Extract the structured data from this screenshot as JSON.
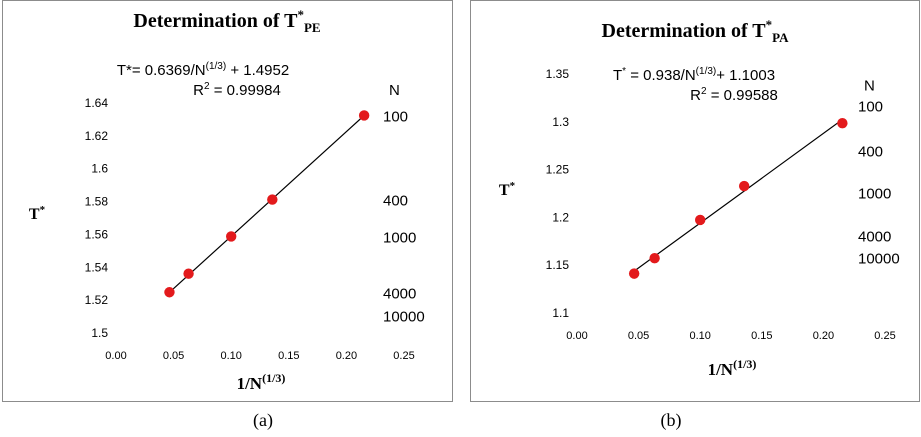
{
  "captions": [
    "(a)",
    "(b)"
  ],
  "chart_data": [
    {
      "type": "scatter",
      "title_main": "Determination of T",
      "title_sup": "*",
      "title_sub": "PE",
      "xlabel_main": "1/N",
      "xlabel_sup": "(1/3)",
      "ylabel_main": "T",
      "ylabel_sup": "*",
      "xlim": [
        0,
        0.25
      ],
      "ylim": [
        1.5,
        1.64
      ],
      "xticks": [
        "0.00",
        "0.05",
        "0.10",
        "0.15",
        "0.20",
        "0.25"
      ],
      "xtick_values": [
        0,
        0.05,
        0.1,
        0.15,
        0.2,
        0.25
      ],
      "yticks": [
        "1.5",
        "1.52",
        "1.54",
        "1.56",
        "1.58",
        "1.6",
        "1.62",
        "1.64"
      ],
      "ytick_values": [
        1.5,
        1.52,
        1.54,
        1.56,
        1.58,
        1.6,
        1.62,
        1.64
      ],
      "x": [
        0.0464,
        0.063,
        0.1,
        0.1357,
        0.2154
      ],
      "y": [
        1.5248,
        1.5361,
        1.5588,
        1.5812,
        1.6324
      ],
      "point_color": "#e31a1c",
      "fit": {
        "slope": 0.6369,
        "intercept": 1.4952,
        "x_range": [
          0.0464,
          0.2154
        ]
      },
      "equation_parts": [
        "T*= 0.6369/N",
        "(1/3)",
        " + 1.4952"
      ],
      "r2_parts": [
        "R",
        "2",
        " = 0.99984"
      ],
      "n_header": "N",
      "n_labels": [
        {
          "text": "100",
          "y": 1.6324
        },
        {
          "text": "400",
          "y": 1.5812
        },
        {
          "text": "1000",
          "y": 1.5588
        },
        {
          "text": "4000",
          "y": 1.5248
        },
        {
          "text": "10000",
          "y": 1.5106
        }
      ]
    },
    {
      "type": "scatter",
      "title_main": "Determination of T",
      "title_sup": "*",
      "title_sub": "PA",
      "xlabel_main": "1/N",
      "xlabel_sup": "(1/3)",
      "ylabel_main": "T",
      "ylabel_sup": "*",
      "xlim": [
        0,
        0.25
      ],
      "ylim": [
        1.1,
        1.35
      ],
      "xticks": [
        "0.00",
        "0.05",
        "0.10",
        "0.15",
        "0.20",
        "0.25"
      ],
      "xtick_values": [
        0,
        0.05,
        0.1,
        0.15,
        0.2,
        0.25
      ],
      "yticks": [
        "1.1",
        "1.15",
        "1.2",
        "1.25",
        "1.3",
        "1.35"
      ],
      "ytick_values": [
        1.1,
        1.15,
        1.2,
        1.25,
        1.3,
        1.35
      ],
      "x": [
        0.0464,
        0.063,
        0.1,
        0.1357,
        0.2154
      ],
      "y": [
        1.1412,
        1.1573,
        1.1973,
        1.2328,
        1.2985
      ],
      "point_color": "#e31a1c",
      "fit": {
        "slope": 0.938,
        "intercept": 1.1003,
        "x_range": [
          0.0464,
          0.2154
        ]
      },
      "equation_parts": [
        "T",
        "*",
        " = 0.938/N",
        "(1/3)",
        "+ 1.1003"
      ],
      "r2_parts": [
        "R",
        "2",
        " = 0.99588"
      ],
      "n_header": "N",
      "n_labels": [
        {
          "text": "100",
          "y": 1.317
        },
        {
          "text": "400",
          "y": 1.27
        },
        {
          "text": "1000",
          "y": 1.226
        },
        {
          "text": "4000",
          "y": 1.181
        },
        {
          "text": "10000",
          "y": 1.158
        }
      ]
    }
  ]
}
